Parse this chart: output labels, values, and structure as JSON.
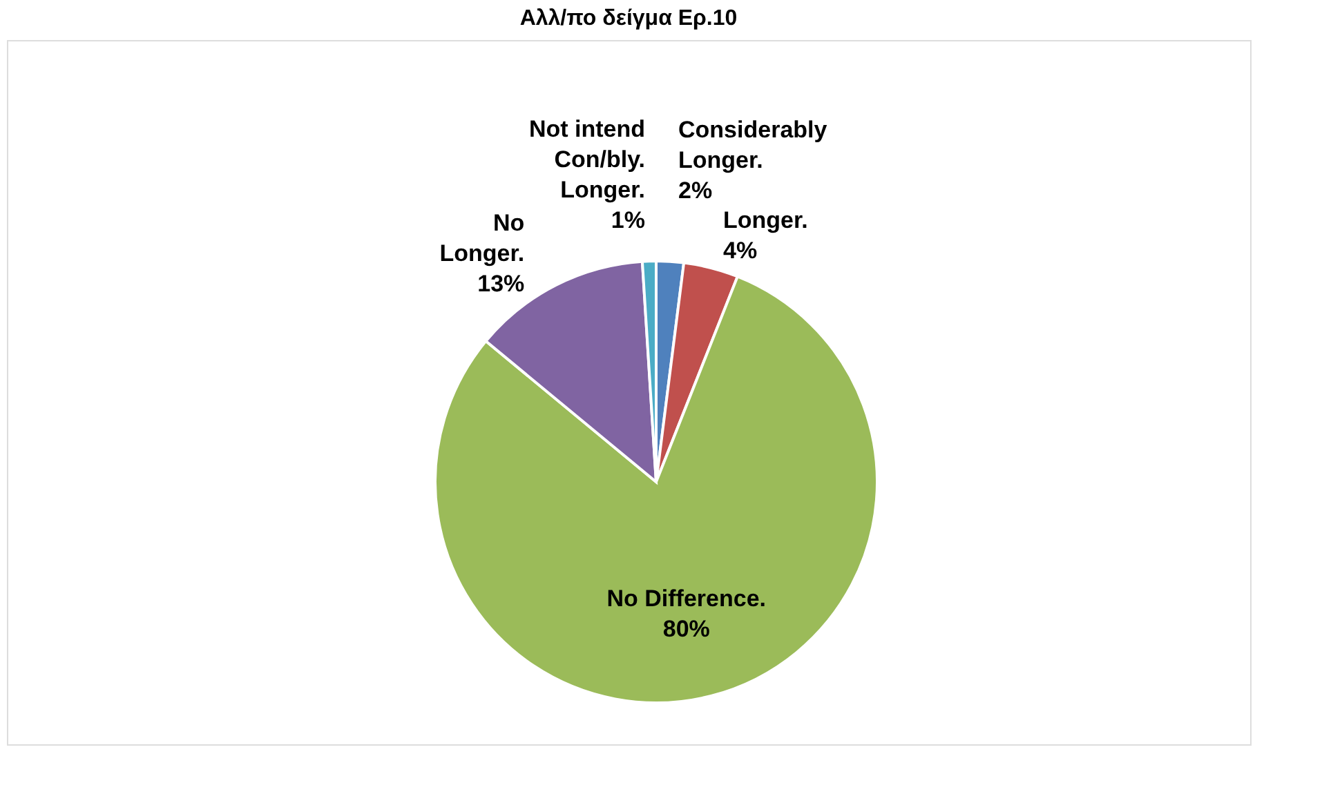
{
  "chart_data": {
    "type": "pie",
    "title": "Αλλ/πο δείγμα Ερ.10",
    "categories": [
      "Considerably\nLonger.",
      "Longer.",
      "No Difference.",
      "No\nLonger.",
      "Not intend\nCon/bly.\nLonger."
    ],
    "values": [
      2,
      4,
      80,
      13,
      1
    ],
    "value_labels": [
      "2%",
      "4%",
      "80%",
      "13%",
      "1%"
    ],
    "colors": [
      "#4f81bd",
      "#c0504d",
      "#9bbb59",
      "#8064a2",
      "#4bacc6"
    ],
    "legend": false
  }
}
